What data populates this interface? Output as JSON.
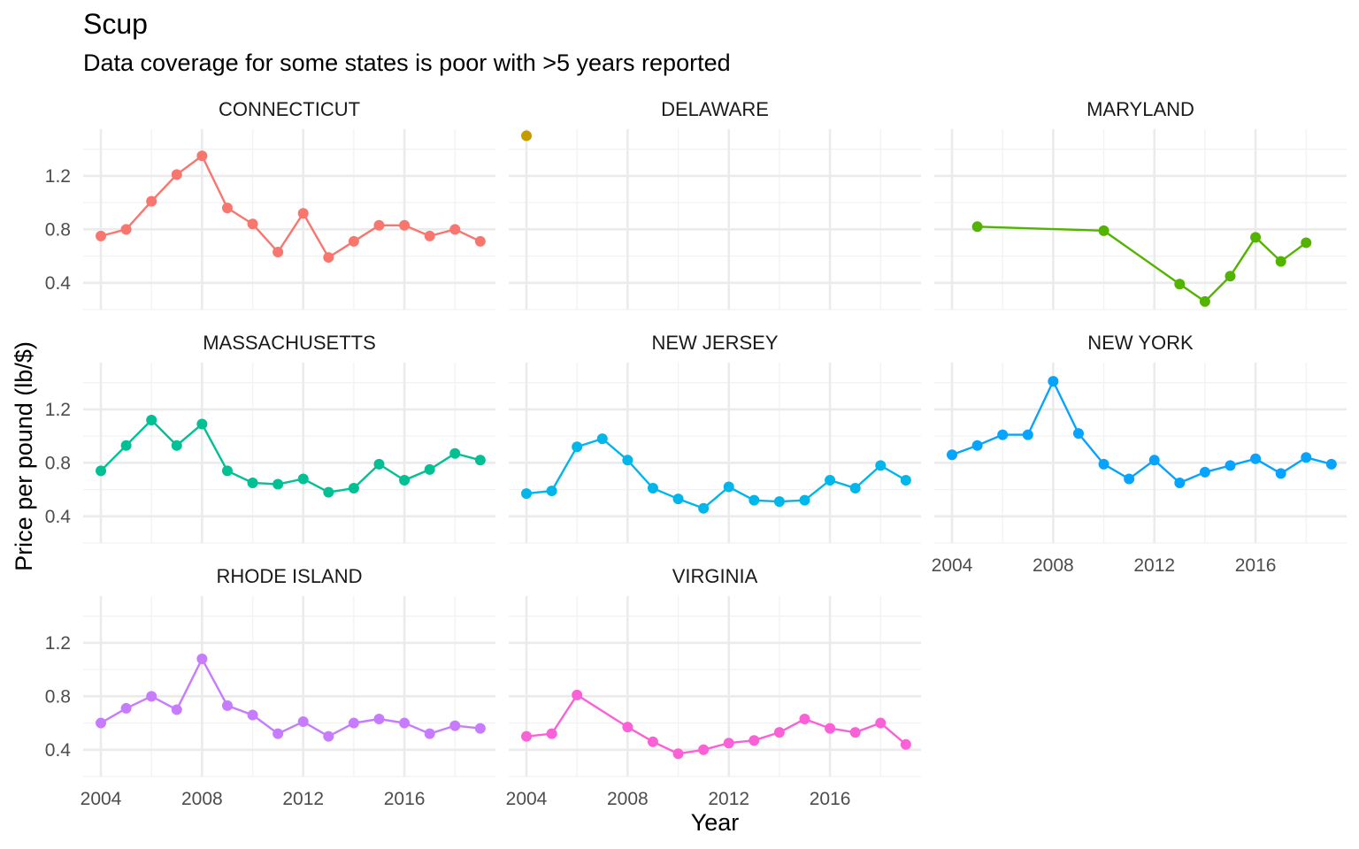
{
  "chart_data": {
    "type": "line",
    "title": "Scup",
    "subtitle": "Data coverage for some states is poor with >5 years reported",
    "xlabel": "Year",
    "ylabel": "Price per pound (lb/$)",
    "xlim": [
      2003.3,
      2019.6
    ],
    "ylim": [
      0.2,
      1.55
    ],
    "x_ticks": [
      2004,
      2008,
      2012,
      2016
    ],
    "y_ticks": [
      0.4,
      0.8,
      1.2
    ],
    "grid": true,
    "legend": "none",
    "panels": [
      {
        "name": "CONNECTICUT",
        "color": "#F8766D",
        "x": [
          2004,
          2005,
          2006,
          2007,
          2008,
          2009,
          2010,
          2011,
          2012,
          2013,
          2014,
          2015,
          2016,
          2017,
          2018,
          2019
        ],
        "y": [
          0.75,
          0.8,
          1.01,
          1.21,
          1.35,
          0.96,
          0.84,
          0.63,
          0.92,
          0.59,
          0.71,
          0.83,
          0.83,
          0.75,
          0.8,
          0.71
        ]
      },
      {
        "name": "DELAWARE",
        "color": "#C49A00",
        "x": [
          2004
        ],
        "y": [
          1.5
        ]
      },
      {
        "name": "MARYLAND",
        "color": "#53B400",
        "x": [
          2005,
          2010,
          2013,
          2014,
          2015,
          2016,
          2017,
          2018
        ],
        "y": [
          0.82,
          0.79,
          0.39,
          0.26,
          0.45,
          0.74,
          0.56,
          0.7
        ]
      },
      {
        "name": "MASSACHUSETTS",
        "color": "#00C094",
        "x": [
          2004,
          2005,
          2006,
          2007,
          2008,
          2009,
          2010,
          2011,
          2012,
          2013,
          2014,
          2015,
          2016,
          2017,
          2018,
          2019
        ],
        "y": [
          0.74,
          0.93,
          1.12,
          0.93,
          1.09,
          0.74,
          0.65,
          0.64,
          0.68,
          0.58,
          0.61,
          0.79,
          0.67,
          0.75,
          0.87,
          0.82
        ]
      },
      {
        "name": "NEW JERSEY",
        "color": "#00B6EB",
        "x": [
          2004,
          2005,
          2006,
          2007,
          2008,
          2009,
          2010,
          2011,
          2012,
          2013,
          2014,
          2015,
          2016,
          2017,
          2018,
          2019
        ],
        "y": [
          0.57,
          0.59,
          0.92,
          0.98,
          0.82,
          0.61,
          0.53,
          0.46,
          0.62,
          0.52,
          0.51,
          0.52,
          0.67,
          0.61,
          0.78,
          0.67
        ]
      },
      {
        "name": "NEW YORK",
        "color": "#06A4FF",
        "x": [
          2004,
          2005,
          2006,
          2007,
          2008,
          2009,
          2010,
          2011,
          2012,
          2013,
          2014,
          2015,
          2016,
          2017,
          2018,
          2019
        ],
        "y": [
          0.86,
          0.93,
          1.01,
          1.01,
          1.41,
          1.02,
          0.79,
          0.68,
          0.82,
          0.65,
          0.73,
          0.78,
          0.83,
          0.72,
          0.84,
          0.79
        ]
      },
      {
        "name": "RHODE ISLAND",
        "color": "#C77CFF",
        "x": [
          2004,
          2005,
          2006,
          2007,
          2008,
          2009,
          2010,
          2011,
          2012,
          2013,
          2014,
          2015,
          2016,
          2017,
          2018,
          2019
        ],
        "y": [
          0.6,
          0.71,
          0.8,
          0.7,
          1.08,
          0.73,
          0.66,
          0.52,
          0.61,
          0.5,
          0.6,
          0.63,
          0.6,
          0.52,
          0.58,
          0.56
        ]
      },
      {
        "name": "VIRGINIA",
        "color": "#FB61D7",
        "x": [
          2004,
          2005,
          2006,
          2008,
          2009,
          2010,
          2011,
          2012,
          2013,
          2014,
          2015,
          2016,
          2017,
          2018,
          2019
        ],
        "y": [
          0.5,
          0.52,
          0.81,
          0.57,
          0.46,
          0.37,
          0.4,
          0.45,
          0.47,
          0.53,
          0.63,
          0.56,
          0.53,
          0.6,
          0.44
        ]
      }
    ]
  }
}
